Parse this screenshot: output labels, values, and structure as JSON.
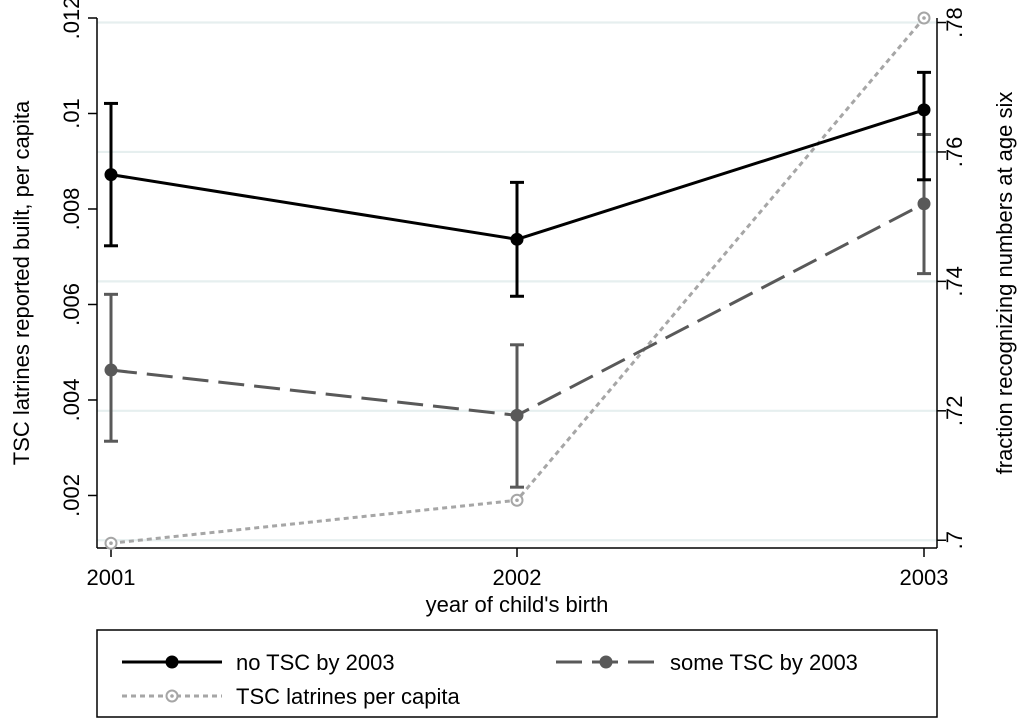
{
  "chart_data": {
    "type": "line",
    "x": [
      2001,
      2002,
      2003
    ],
    "xlabel": "year of child's birth",
    "xticks": [
      "2001",
      "2002",
      "2003"
    ],
    "y_left": {
      "label": "TSC latrines reported built, per capita",
      "range": [
        0.0009,
        0.012
      ],
      "ticks": [
        ".002",
        ".004",
        ".006",
        ".008",
        ".01",
        ".012"
      ],
      "tick_values": [
        0.002,
        0.004,
        0.006,
        0.008,
        0.01,
        0.012
      ]
    },
    "y_right": {
      "label": "fraction recognizing numbers at age six",
      "range": [
        0.6988,
        0.7807
      ],
      "ticks": [
        ".7",
        ".72",
        ".74",
        ".76",
        ".78"
      ],
      "tick_values": [
        0.7,
        0.72,
        0.74,
        0.76,
        0.78
      ]
    },
    "series": [
      {
        "name": "no TSC by 2003",
        "axis": "right",
        "values": [
          0.7565,
          0.7465,
          0.7665
        ],
        "ci_low": [
          0.7455,
          0.7377,
          0.7557
        ],
        "ci_high": [
          0.7675,
          0.7553,
          0.7723
        ],
        "color": "#000000",
        "line": "solid",
        "marker": "filled-circle"
      },
      {
        "name": "some TSC by 2003",
        "axis": "right",
        "values": [
          0.7263,
          0.7193,
          0.752
        ],
        "ci_low": [
          0.7153,
          0.7082,
          0.7412
        ],
        "ci_high": [
          0.738,
          0.7302,
          0.7627
        ],
        "color": "#595959",
        "line": "dashed",
        "marker": "filled-circle"
      },
      {
        "name": "TSC latrines per capita",
        "axis": "left",
        "values": [
          0.001,
          0.0019,
          0.012
        ],
        "color": "#a6a6a6",
        "line": "dotted",
        "marker": "hollow-circle"
      }
    ],
    "grid": true,
    "legend_position": "bottom"
  }
}
